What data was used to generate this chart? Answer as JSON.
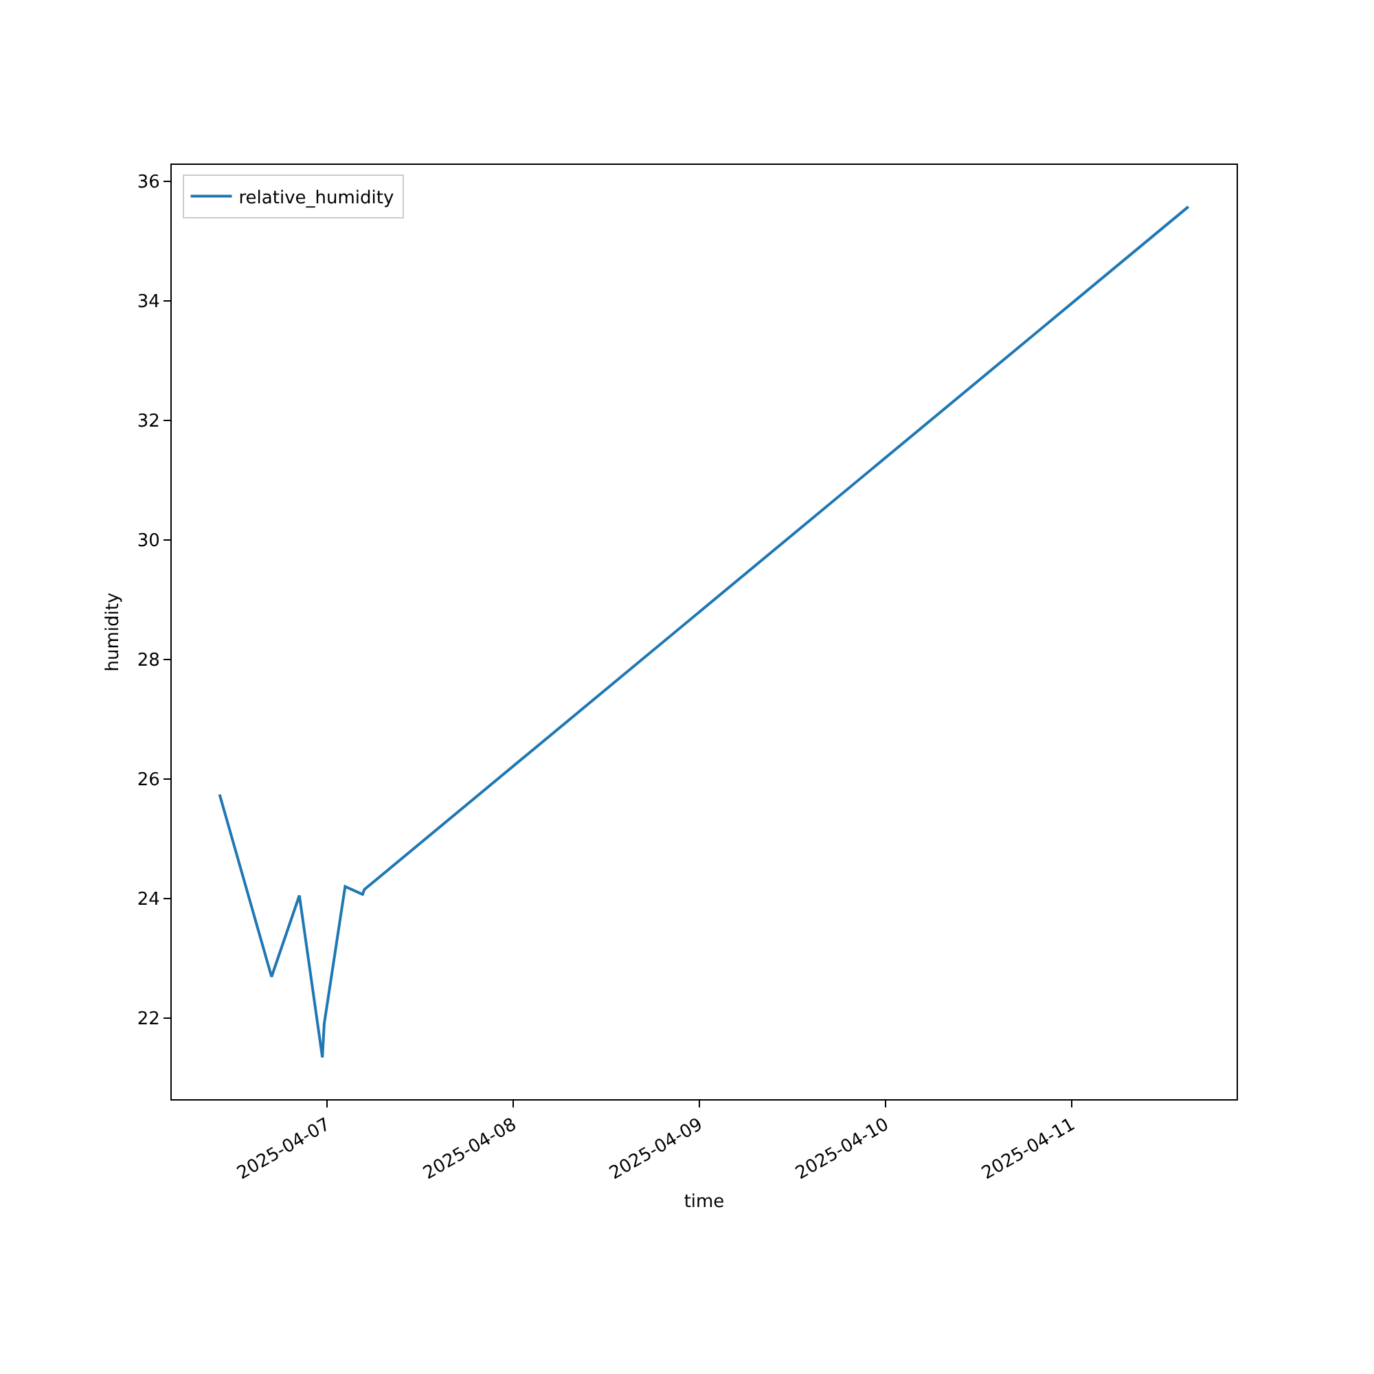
{
  "chart_data": {
    "type": "line",
    "xlabel": "time",
    "ylabel": "humidity",
    "x": [
      "2025-04-06T10:10",
      "2025-04-06T16:52",
      "2025-04-06T20:27",
      "2025-04-06T23:25",
      "2025-04-06T23:39",
      "2025-04-07T02:21",
      "2025-04-07T04:36",
      "2025-04-07T04:50",
      "2025-04-11T15:03"
    ],
    "series": [
      {
        "name": "relative_humidity",
        "color": "#1f77b4",
        "values": [
          25.74,
          22.69,
          24.05,
          21.34,
          21.9,
          24.2,
          24.07,
          24.15,
          35.58
        ]
      }
    ],
    "xlim": [
      "2025-04-06T04:00",
      "2025-04-11T21:16"
    ],
    "xticks": [
      "2025-04-07",
      "2025-04-08",
      "2025-04-09",
      "2025-04-10",
      "2025-04-11"
    ],
    "ylim": [
      20.64,
      36.28
    ],
    "yticks": [
      22,
      24,
      26,
      28,
      30,
      32,
      34,
      36
    ],
    "grid": false,
    "legend": "top left",
    "line_style": "solid"
  }
}
